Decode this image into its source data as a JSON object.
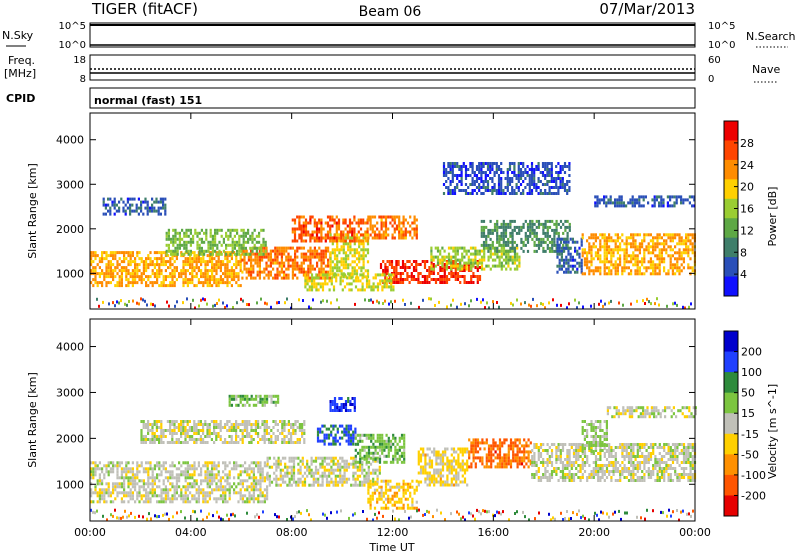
{
  "header": {
    "station": "TIGER (fitACF)",
    "beam": "Beam 06",
    "date": "07/Mar/2013"
  },
  "strips": {
    "nsky_label": "N.Sky",
    "nsearch_label": "N.Search",
    "freq_label_1": "Freq.",
    "freq_label_2": "[MHz]",
    "nave_label": "Nave",
    "cpid_label": "CPID",
    "cpid_value": "normal (fast) 151",
    "nsky_ticks": [
      "10^5",
      "10^0"
    ],
    "nsearch_ticks": [
      "10^5",
      "10^0"
    ],
    "freq_ticks": [
      "18",
      "8"
    ],
    "nave_ticks": [
      "60",
      "0"
    ]
  },
  "colors": {
    "power": [
      "#1010ff",
      "#2a4fb8",
      "#3f7e6a",
      "#5ea845",
      "#9acd32",
      "#ffd000",
      "#ff8c00",
      "#ff4500",
      "#ee0000"
    ],
    "velocity": [
      "#0000cc",
      "#2040ff",
      "#2e8b3c",
      "#7cc540",
      "#c0c0b8",
      "#ffd000",
      "#ff9000",
      "#ff5500",
      "#e60000"
    ]
  },
  "chart_data": [
    {
      "type": "heatmap",
      "ylabel": "Slant Range [km]",
      "xlabel": "Time UT",
      "x_ticks": [
        "00:00",
        "04:00",
        "08:00",
        "12:00",
        "16:00",
        "20:00",
        "00:00"
      ],
      "y_ticks": [
        1000,
        2000,
        3000,
        4000
      ],
      "ylim": [
        200,
        4600
      ],
      "colorbar": {
        "label": "Power [dB]",
        "ticks": [
          4,
          8,
          12,
          16,
          20,
          24,
          28
        ],
        "range": [
          0,
          32
        ]
      },
      "regions": [
        {
          "t0": 0.0,
          "t1": 6.0,
          "r0": 700,
          "r1": 1500,
          "v": 22
        },
        {
          "t0": 6.0,
          "t1": 9.5,
          "r0": 900,
          "r1": 1600,
          "v": 24
        },
        {
          "t0": 9.5,
          "t1": 11.0,
          "r0": 900,
          "r1": 1900,
          "v": 18
        },
        {
          "t0": 3.0,
          "t1": 7.0,
          "r0": 1400,
          "r1": 2000,
          "v": 14
        },
        {
          "t0": 8.0,
          "t1": 11.0,
          "r0": 1700,
          "r1": 2300,
          "v": 26
        },
        {
          "t0": 11.0,
          "t1": 13.0,
          "r0": 1800,
          "r1": 2300,
          "v": 24
        },
        {
          "t0": 0.5,
          "t1": 3.0,
          "r0": 2300,
          "r1": 2700,
          "v": 6
        },
        {
          "t0": 11.5,
          "t1": 15.5,
          "r0": 800,
          "r1": 1300,
          "v": 28
        },
        {
          "t0": 13.5,
          "t1": 17.0,
          "r0": 1100,
          "r1": 1600,
          "v": 16
        },
        {
          "t0": 15.5,
          "t1": 19.0,
          "r0": 1500,
          "r1": 2200,
          "v": 10
        },
        {
          "t0": 18.5,
          "t1": 19.5,
          "r0": 1000,
          "r1": 1800,
          "v": 6
        },
        {
          "t0": 19.5,
          "t1": 24.0,
          "r0": 1000,
          "r1": 1900,
          "v": 22
        },
        {
          "t0": 20.0,
          "t1": 24.0,
          "r0": 2500,
          "r1": 2750,
          "v": 6
        },
        {
          "t0": 14.0,
          "t1": 19.0,
          "r0": 2800,
          "r1": 3500,
          "v": 5
        },
        {
          "t0": 8.5,
          "t1": 12.0,
          "r0": 600,
          "r1": 1000,
          "v": 18
        }
      ]
    },
    {
      "type": "heatmap",
      "ylabel": "Slant Range [km]",
      "xlabel": "Time UT",
      "x_ticks": [
        "00:00",
        "04:00",
        "08:00",
        "12:00",
        "16:00",
        "20:00",
        "00:00"
      ],
      "y_ticks": [
        1000,
        2000,
        3000,
        4000
      ],
      "ylim": [
        200,
        4600
      ],
      "colorbar": {
        "label": "Velocity [m s^-1]",
        "ticks": [
          200,
          100,
          50,
          15,
          -15,
          -50,
          -100,
          -200
        ],
        "range": [
          -250,
          250
        ]
      },
      "regions": [
        {
          "t0": 0.0,
          "t1": 7.0,
          "r0": 600,
          "r1": 1500,
          "v": 0
        },
        {
          "t0": 7.0,
          "t1": 11.5,
          "r0": 1000,
          "r1": 1600,
          "v": 0
        },
        {
          "t0": 2.0,
          "t1": 8.5,
          "r0": 1900,
          "r1": 2400,
          "v": 0
        },
        {
          "t0": 9.0,
          "t1": 10.5,
          "r0": 1900,
          "r1": 2300,
          "v": 150
        },
        {
          "t0": 10.5,
          "t1": 12.5,
          "r0": 1500,
          "r1": 2100,
          "v": 60
        },
        {
          "t0": 11.0,
          "t1": 13.0,
          "r0": 500,
          "r1": 1100,
          "v": -60
        },
        {
          "t0": 13.0,
          "t1": 15.0,
          "r0": 1000,
          "r1": 1800,
          "v": -40
        },
        {
          "t0": 15.0,
          "t1": 17.5,
          "r0": 1400,
          "r1": 2000,
          "v": -150
        },
        {
          "t0": 17.5,
          "t1": 24.0,
          "r0": 1100,
          "r1": 1900,
          "v": 0
        },
        {
          "t0": 19.5,
          "t1": 20.5,
          "r0": 1700,
          "r1": 2400,
          "v": 40
        },
        {
          "t0": 9.5,
          "t1": 10.5,
          "r0": 2600,
          "r1": 2900,
          "v": 180
        },
        {
          "t0": 20.5,
          "t1": 24.0,
          "r0": 2500,
          "r1": 2700,
          "v": 0
        },
        {
          "t0": 5.5,
          "t1": 7.5,
          "r0": 2700,
          "r1": 2950,
          "v": 60
        }
      ]
    }
  ]
}
